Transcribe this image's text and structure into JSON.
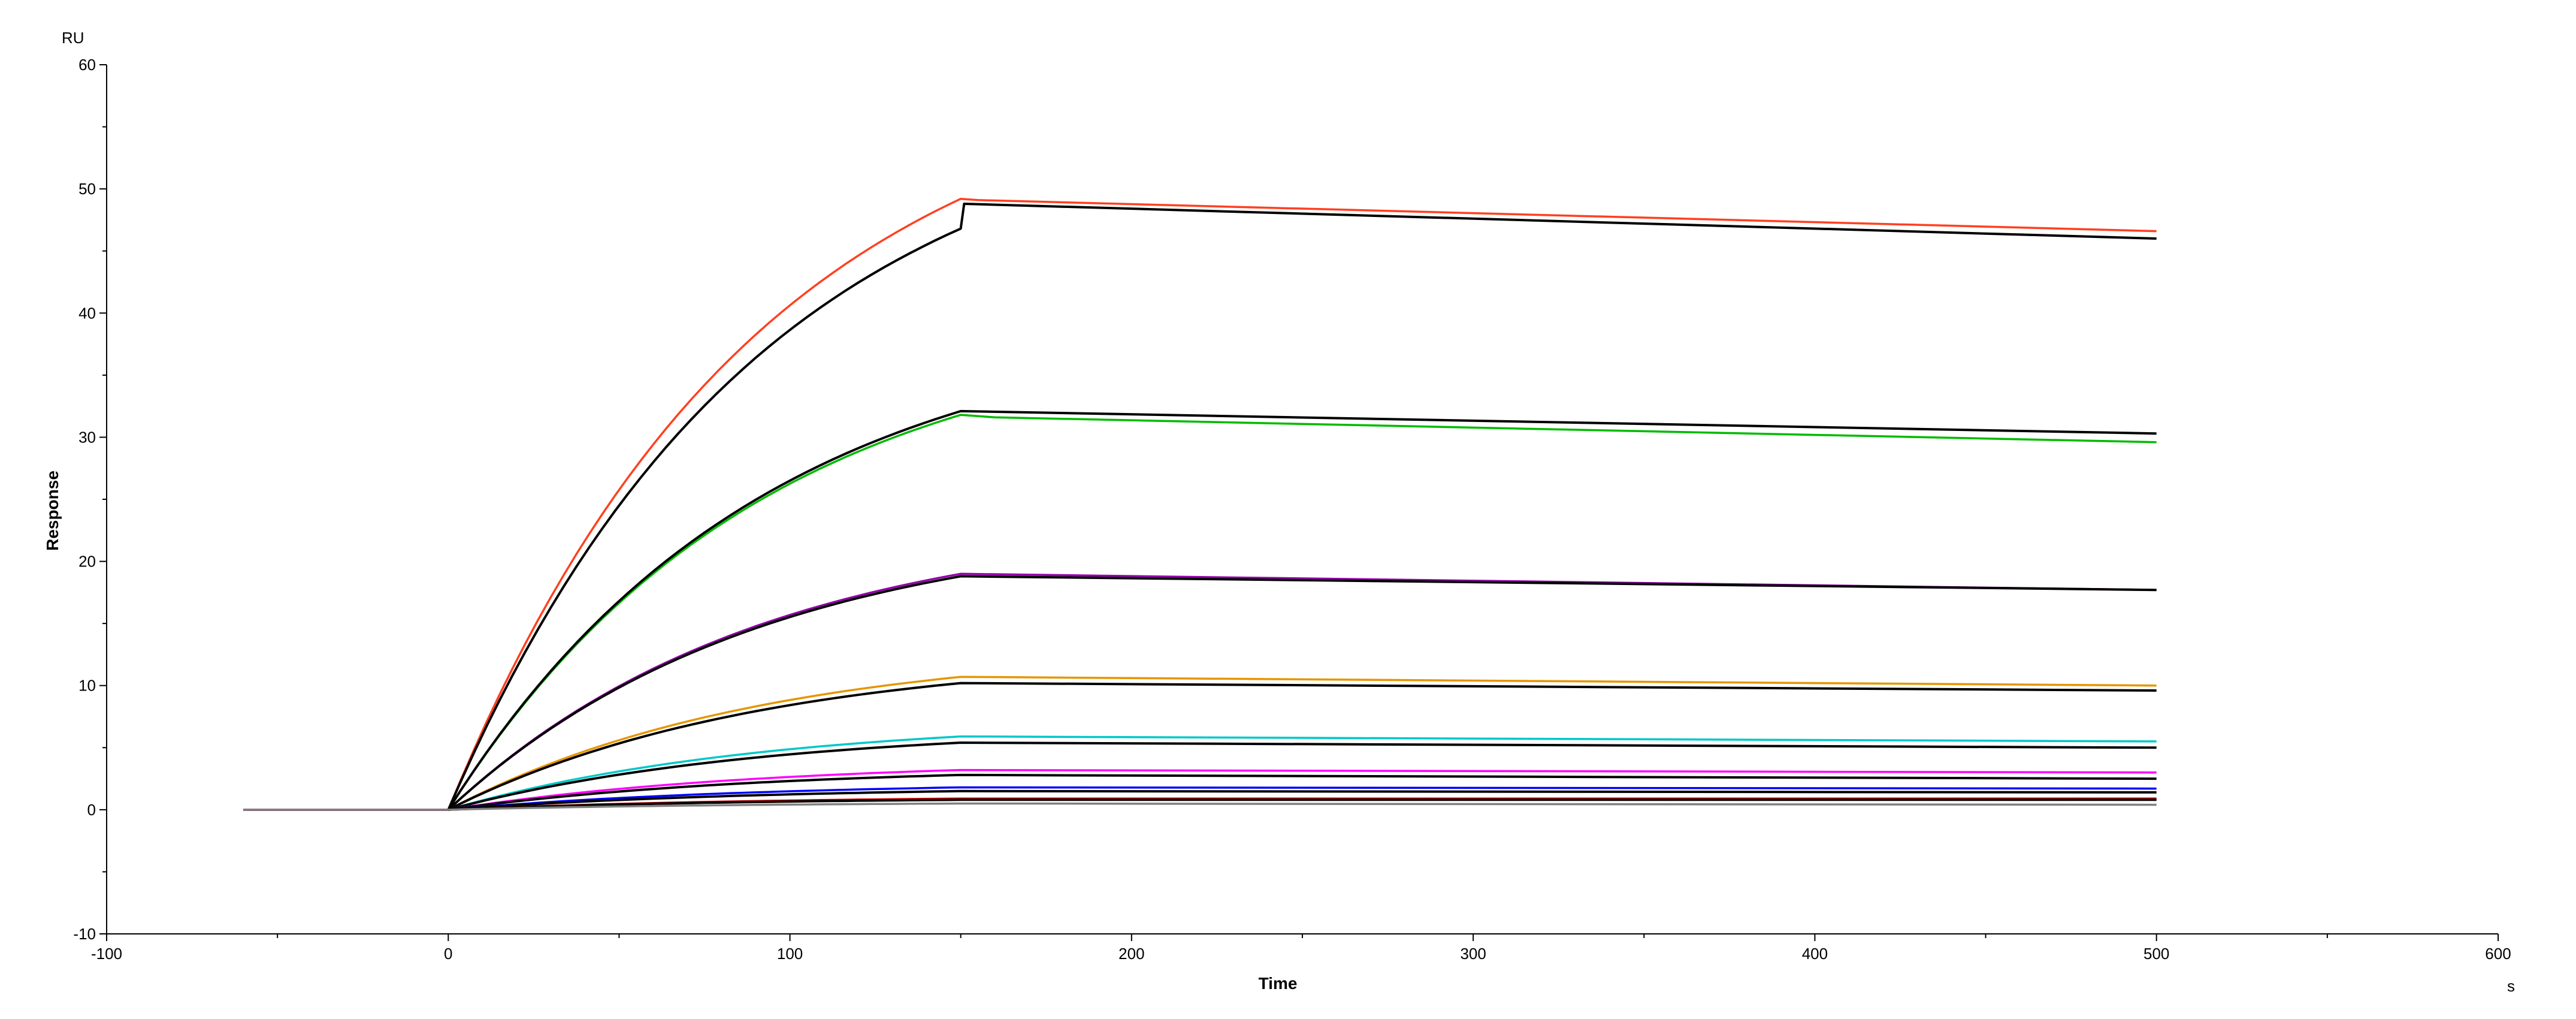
{
  "chart_data": {
    "type": "line",
    "title": "",
    "xlabel": "Time",
    "ylabel": "Response",
    "x_unit": "s",
    "y_unit": "RU",
    "xlim": [
      -100,
      600
    ],
    "ylim": [
      -10,
      60
    ],
    "x_ticks": [
      -100,
      0,
      100,
      200,
      300,
      400,
      500,
      600
    ],
    "y_ticks": [
      -10,
      0,
      10,
      20,
      30,
      40,
      50,
      60
    ],
    "legend": "none",
    "grid": false,
    "series": [
      {
        "color": "#ff4020",
        "type": "data",
        "points": [
          [
            -60,
            0
          ],
          [
            0,
            0
          ],
          [
            150,
            49.2
          ],
          [
            155,
            49.1
          ],
          [
            500,
            46.6
          ]
        ]
      },
      {
        "color": "#000000",
        "type": "fit",
        "points": [
          [
            0,
            0
          ],
          [
            150,
            46.8
          ],
          [
            151,
            48.8
          ],
          [
            500,
            46.0
          ]
        ]
      },
      {
        "color": "#00bb00",
        "type": "data",
        "points": [
          [
            -60,
            0
          ],
          [
            0,
            0
          ],
          [
            150,
            31.8
          ],
          [
            160,
            31.6
          ],
          [
            500,
            29.6
          ]
        ]
      },
      {
        "color": "#000000",
        "type": "fit",
        "points": [
          [
            0,
            0
          ],
          [
            150,
            32.1
          ],
          [
            500,
            30.3
          ]
        ]
      },
      {
        "color": "#9400aa",
        "type": "data",
        "points": [
          [
            -60,
            0
          ],
          [
            0,
            0
          ],
          [
            150,
            19.0
          ],
          [
            500,
            17.7
          ]
        ]
      },
      {
        "color": "#000000",
        "type": "fit",
        "points": [
          [
            0,
            0
          ],
          [
            150,
            18.8
          ],
          [
            500,
            17.7
          ]
        ]
      },
      {
        "color": "#e69500",
        "type": "data",
        "points": [
          [
            -60,
            0
          ],
          [
            0,
            0
          ],
          [
            150,
            10.7
          ],
          [
            500,
            10.0
          ]
        ]
      },
      {
        "color": "#000000",
        "type": "fit",
        "points": [
          [
            0,
            0
          ],
          [
            150,
            10.2
          ],
          [
            500,
            9.6
          ]
        ]
      },
      {
        "color": "#00c8c8",
        "type": "data",
        "points": [
          [
            -60,
            0
          ],
          [
            0,
            0
          ],
          [
            150,
            5.9
          ],
          [
            500,
            5.5
          ]
        ]
      },
      {
        "color": "#000000",
        "type": "fit",
        "points": [
          [
            0,
            0
          ],
          [
            150,
            5.4
          ],
          [
            500,
            5.0
          ]
        ]
      },
      {
        "color": "#ff00ff",
        "type": "data",
        "points": [
          [
            -60,
            0
          ],
          [
            0,
            0
          ],
          [
            150,
            3.2
          ],
          [
            500,
            3.0
          ]
        ]
      },
      {
        "color": "#000000",
        "type": "fit",
        "points": [
          [
            0,
            0
          ],
          [
            150,
            2.8
          ],
          [
            500,
            2.5
          ]
        ]
      },
      {
        "color": "#0000ff",
        "type": "data",
        "points": [
          [
            -60,
            0
          ],
          [
            0,
            0
          ],
          [
            150,
            1.8
          ],
          [
            500,
            1.7
          ]
        ]
      },
      {
        "color": "#000000",
        "type": "fit",
        "points": [
          [
            0,
            0
          ],
          [
            150,
            1.5
          ],
          [
            500,
            1.4
          ]
        ]
      },
      {
        "color": "#cc0000",
        "type": "data",
        "points": [
          [
            -60,
            0
          ],
          [
            0,
            0
          ],
          [
            150,
            0.9
          ],
          [
            500,
            0.9
          ]
        ]
      },
      {
        "color": "#000000",
        "type": "fit",
        "points": [
          [
            0,
            0
          ],
          [
            150,
            0.8
          ],
          [
            500,
            0.8
          ]
        ]
      },
      {
        "color": "#808080",
        "type": "data",
        "points": [
          [
            -60,
            0
          ],
          [
            0,
            0
          ],
          [
            150,
            0.5
          ],
          [
            500,
            0.4
          ]
        ]
      }
    ]
  }
}
